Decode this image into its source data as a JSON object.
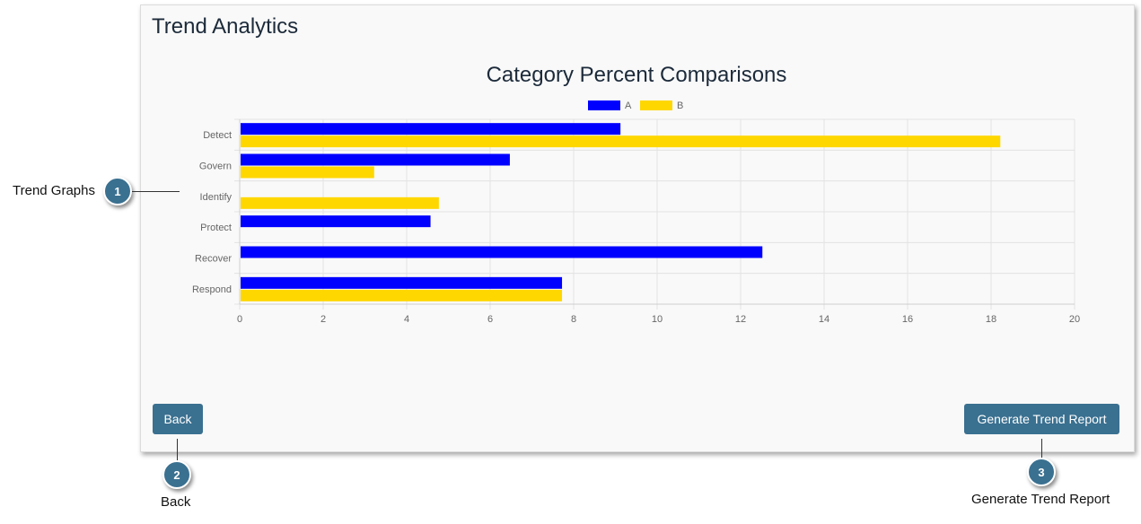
{
  "page": {
    "title": "Trend Analytics"
  },
  "buttons": {
    "back_label": "Back",
    "generate_label": "Generate Trend Report"
  },
  "callouts": [
    {
      "number": "1",
      "label": "Trend Graphs"
    },
    {
      "number": "2",
      "label": "Back"
    },
    {
      "number": "3",
      "label": "Generate Trend Report"
    }
  ],
  "colors": {
    "series_a": "#0000ff",
    "series_b": "#ffd700",
    "button": "#3a7090"
  },
  "chart_data": {
    "type": "bar",
    "orientation": "horizontal",
    "title": "Category Percent Comparisons",
    "categories": [
      "Detect",
      "Govern",
      "Identify",
      "Protect",
      "Recover",
      "Respond"
    ],
    "series": [
      {
        "name": "A",
        "values": [
          9.1,
          6.45,
          0,
          4.55,
          12.5,
          7.7
        ]
      },
      {
        "name": "B",
        "values": [
          18.2,
          3.2,
          4.75,
          0,
          0,
          7.7
        ]
      }
    ],
    "xlim": [
      0,
      20
    ],
    "xticks": [
      "0",
      "2",
      "4",
      "6",
      "8",
      "10",
      "12",
      "14",
      "16",
      "18",
      "20"
    ],
    "grid": true,
    "legend": "top"
  }
}
